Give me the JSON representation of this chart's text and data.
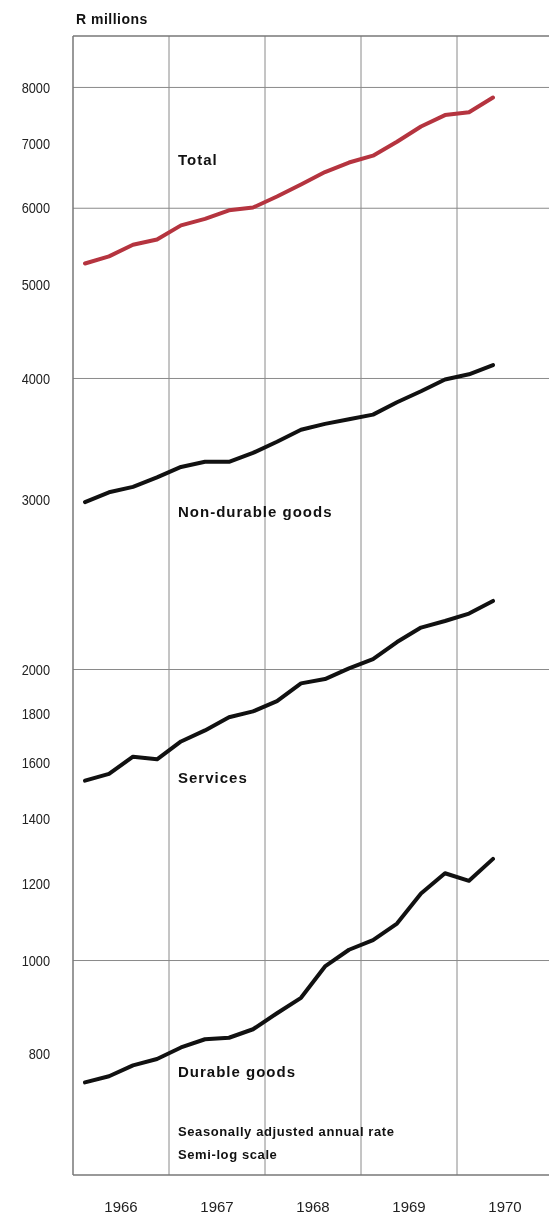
{
  "chart_data": {
    "type": "line",
    "ylabel": "R millions",
    "log": "y",
    "x": [
      1966.125,
      1966.375,
      1966.625,
      1966.875,
      1967.125,
      1967.375,
      1967.625,
      1967.875,
      1968.125,
      1968.375,
      1968.625,
      1968.875,
      1969.125,
      1969.375,
      1969.625,
      1969.875,
      1970.125,
      1970.375
    ],
    "xlim": [
      1966,
      1971
    ],
    "xticks": [
      {
        "value": 1966.5,
        "label": "1966"
      },
      {
        "value": 1967.5,
        "label": "1967"
      },
      {
        "value": 1968.5,
        "label": "1968"
      },
      {
        "value": 1969.5,
        "label": "1969"
      },
      {
        "value": 1970.5,
        "label": "1970"
      }
    ],
    "ylim": [
      600,
      9000
    ],
    "yticks": [
      800,
      1000,
      1200,
      1400,
      1600,
      1800,
      2000,
      3000,
      4000,
      5000,
      6000,
      7000,
      8000
    ],
    "series": [
      {
        "name": "Total",
        "color": "#b5343f",
        "values": [
          5260,
          5350,
          5500,
          5570,
          5760,
          5850,
          5970,
          6010,
          6170,
          6350,
          6540,
          6690,
          6800,
          7030,
          7290,
          7490,
          7540,
          7810
        ]
      },
      {
        "name": "Non-durable goods",
        "color": "#111111",
        "values": [
          2980,
          3050,
          3090,
          3160,
          3240,
          3280,
          3280,
          3350,
          3440,
          3540,
          3590,
          3630,
          3670,
          3780,
          3880,
          3990,
          4040,
          4130
        ]
      },
      {
        "name": "Services",
        "color": "#111111",
        "values": [
          1535,
          1560,
          1625,
          1615,
          1685,
          1730,
          1785,
          1810,
          1855,
          1935,
          1955,
          2005,
          2050,
          2135,
          2210,
          2245,
          2285,
          2355
        ]
      },
      {
        "name": "Durable goods",
        "color": "#111111",
        "values": [
          748,
          759,
          779,
          791,
          813,
          829,
          832,
          849,
          882,
          915,
          986,
          1026,
          1050,
          1092,
          1173,
          1231,
          1209,
          1274
        ]
      }
    ],
    "ref_lines": [
      {
        "axis": "x",
        "value": 1967
      },
      {
        "axis": "x",
        "value": 1968
      },
      {
        "axis": "x",
        "value": 1969
      },
      {
        "axis": "x",
        "value": 1970
      },
      {
        "axis": "y",
        "value": 8000
      },
      {
        "axis": "y",
        "value": 6000
      },
      {
        "axis": "y",
        "value": 4000
      },
      {
        "axis": "y",
        "value": 2000
      },
      {
        "axis": "y",
        "value": 1000
      }
    ],
    "annotations": [
      "Seasonally adjusted annual rate",
      "Semi-log scale"
    ]
  }
}
